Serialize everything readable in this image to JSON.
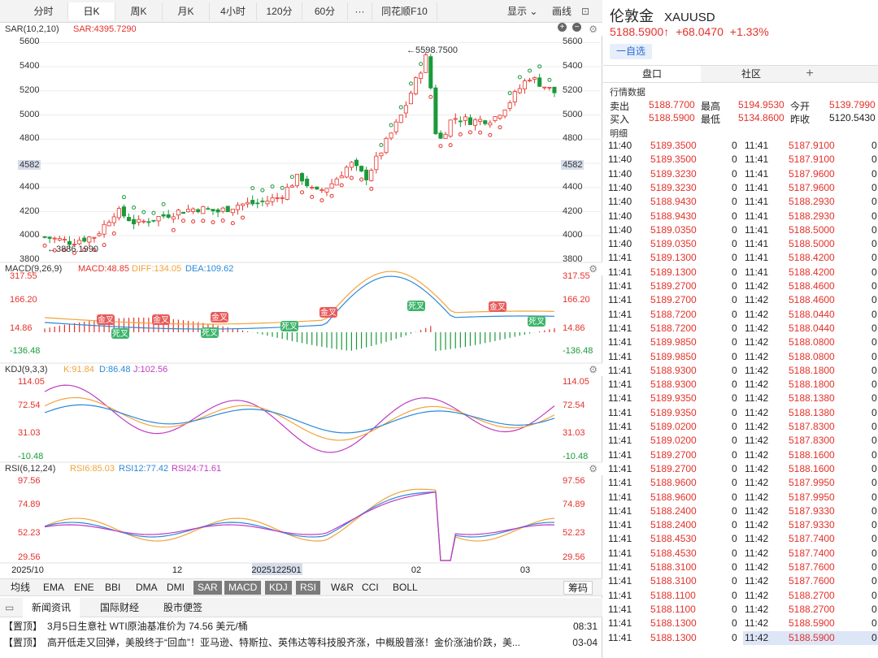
{
  "toolbar": {
    "timeframes": [
      "分时",
      "日K",
      "周K",
      "月K",
      "4小时",
      "120分",
      "60分"
    ],
    "more": "···",
    "f10": "同花顺F10",
    "display": "显示",
    "draw": "画线"
  },
  "main_panel": {
    "indicator": "SAR(10,2,10)",
    "sar_value": "SAR:4395.7290",
    "high_annot": "5598.7500",
    "low_annot": "3886.1990",
    "current_y_label": "4582",
    "y_ticks": [
      "5600",
      "5400",
      "5200",
      "5000",
      "4800",
      "4600",
      "4400",
      "4200",
      "4000",
      "3800"
    ]
  },
  "macd_panel": {
    "title": "MACD(9,26,9)",
    "macd": "MACD:48.85",
    "diff": "DIFF:134.05",
    "dea": "DEA:109.62",
    "y_ticks": [
      "317.55",
      "166.20",
      "14.86",
      "-136.48"
    ],
    "golden_label": "金叉",
    "death_label": "死叉"
  },
  "kdj_panel": {
    "title": "KDJ(9,3,3)",
    "k": "K:91.84",
    "d": "D:86.48",
    "j": "J:102.56",
    "y_ticks": [
      "114.05",
      "72.54",
      "31.03",
      "-10.48"
    ]
  },
  "rsi_panel": {
    "title": "RSI(6,12,24)",
    "rsi6": "RSI6:85.03",
    "rsi12": "RSI12:77.42",
    "rsi24": "RSI24:71.61",
    "y_ticks": [
      "97.56",
      "74.89",
      "52.23",
      "29.56"
    ]
  },
  "x_axis": {
    "labels": [
      "2025/10",
      "12",
      "2025122501",
      "02",
      "03"
    ]
  },
  "indicator_tabs": [
    "均线",
    "EMA",
    "ENE",
    "BBI",
    "DMA",
    "DMI",
    "SAR",
    "MACD",
    "KDJ",
    "RSI",
    "W&R",
    "CCI",
    "BOLL"
  ],
  "active_indicators": [
    "SAR",
    "MACD",
    "KDJ",
    "RSI"
  ],
  "chip_label": "筹码",
  "news": {
    "tabs": [
      "新闻资讯",
      "国际财经",
      "股市便签"
    ],
    "items": [
      {
        "tag": "【置顶】",
        "text": "3月5日生意社 WTI原油基准价为 74.56 美元/桶",
        "time": "08:31"
      },
      {
        "tag": "【置顶】",
        "text": "高开低走又回弹，美股终于“回血”！亚马逊、特斯拉、英伟达等科技股齐涨，中概股普涨！金价涨油价跌，美...",
        "time": "03-04"
      }
    ]
  },
  "quote": {
    "name": "伦敦金",
    "code": "XAUUSD",
    "price": "5188.5900",
    "arrow": "↑",
    "change": "+68.0470",
    "change_pct": "+1.33%",
    "add_watch": "一自选",
    "tabs": [
      "盘口",
      "社区",
      "+"
    ],
    "market_label": "行情数据",
    "labels": {
      "sell": "卖出",
      "buy": "买入",
      "high": "最高",
      "low": "最低",
      "open": "今开",
      "prev": "昨收"
    },
    "values": {
      "sell": "5188.7700",
      "buy": "5188.5900",
      "high": "5194.9530",
      "low": "5134.8600",
      "open": "5139.7990",
      "prev": "5120.5430"
    },
    "detail_label": "明细"
  },
  "ticks": {
    "rows": [
      [
        "11:40",
        "5189.3500",
        "0",
        "11:41",
        "5187.9100",
        "0"
      ],
      [
        "11:40",
        "5189.3500",
        "0",
        "11:41",
        "5187.9100",
        "0"
      ],
      [
        "11:40",
        "5189.3230",
        "0",
        "11:41",
        "5187.9600",
        "0"
      ],
      [
        "11:40",
        "5189.3230",
        "0",
        "11:41",
        "5187.9600",
        "0"
      ],
      [
        "11:40",
        "5188.9430",
        "0",
        "11:41",
        "5188.2930",
        "0"
      ],
      [
        "11:40",
        "5188.9430",
        "0",
        "11:41",
        "5188.2930",
        "0"
      ],
      [
        "11:40",
        "5189.0350",
        "0",
        "11:41",
        "5188.5000",
        "0"
      ],
      [
        "11:40",
        "5189.0350",
        "0",
        "11:41",
        "5188.5000",
        "0"
      ],
      [
        "11:41",
        "5189.1300",
        "0",
        "11:41",
        "5188.4200",
        "0"
      ],
      [
        "11:41",
        "5189.1300",
        "0",
        "11:41",
        "5188.4200",
        "0"
      ],
      [
        "11:41",
        "5189.2700",
        "0",
        "11:42",
        "5188.4600",
        "0"
      ],
      [
        "11:41",
        "5189.2700",
        "0",
        "11:42",
        "5188.4600",
        "0"
      ],
      [
        "11:41",
        "5188.7200",
        "0",
        "11:42",
        "5188.0440",
        "0"
      ],
      [
        "11:41",
        "5188.7200",
        "0",
        "11:42",
        "5188.0440",
        "0"
      ],
      [
        "11:41",
        "5189.9850",
        "0",
        "11:42",
        "5188.0800",
        "0"
      ],
      [
        "11:41",
        "5189.9850",
        "0",
        "11:42",
        "5188.0800",
        "0"
      ],
      [
        "11:41",
        "5188.9300",
        "0",
        "11:42",
        "5188.1800",
        "0"
      ],
      [
        "11:41",
        "5188.9300",
        "0",
        "11:42",
        "5188.1800",
        "0"
      ],
      [
        "11:41",
        "5189.9350",
        "0",
        "11:42",
        "5188.1380",
        "0"
      ],
      [
        "11:41",
        "5189.9350",
        "0",
        "11:42",
        "5188.1380",
        "0"
      ],
      [
        "11:41",
        "5189.0200",
        "0",
        "11:42",
        "5187.8300",
        "0"
      ],
      [
        "11:41",
        "5189.0200",
        "0",
        "11:42",
        "5187.8300",
        "0"
      ],
      [
        "11:41",
        "5189.2700",
        "0",
        "11:42",
        "5188.1600",
        "0"
      ],
      [
        "11:41",
        "5189.2700",
        "0",
        "11:42",
        "5188.1600",
        "0"
      ],
      [
        "11:41",
        "5188.9600",
        "0",
        "11:42",
        "5187.9950",
        "0"
      ],
      [
        "11:41",
        "5188.9600",
        "0",
        "11:42",
        "5187.9950",
        "0"
      ],
      [
        "11:41",
        "5188.2400",
        "0",
        "11:42",
        "5187.9330",
        "0"
      ],
      [
        "11:41",
        "5188.2400",
        "0",
        "11:42",
        "5187.9330",
        "0"
      ],
      [
        "11:41",
        "5188.4530",
        "0",
        "11:42",
        "5187.7400",
        "0"
      ],
      [
        "11:41",
        "5188.4530",
        "0",
        "11:42",
        "5187.7400",
        "0"
      ],
      [
        "11:41",
        "5188.3100",
        "0",
        "11:42",
        "5187.7600",
        "0"
      ],
      [
        "11:41",
        "5188.3100",
        "0",
        "11:42",
        "5187.7600",
        "0"
      ],
      [
        "11:41",
        "5188.1100",
        "0",
        "11:42",
        "5188.2700",
        "0"
      ],
      [
        "11:41",
        "5188.1100",
        "0",
        "11:42",
        "5188.2700",
        "0"
      ],
      [
        "11:41",
        "5188.1300",
        "0",
        "11:42",
        "5188.5900",
        "0"
      ],
      [
        "11:41",
        "5188.1300",
        "0",
        "11:42",
        "5188.5900",
        "0"
      ]
    ]
  },
  "colors": {
    "up": "#e4322b",
    "down": "#1a9a3a",
    "blue": "#2a6ad9",
    "orange": "#f2a33a",
    "magenta": "#c23bc2",
    "sar": "#e4322b",
    "sar_down": "#1a9a3a"
  },
  "chart_data": {
    "type": "candlestick",
    "y_range": [
      3800,
      5650
    ],
    "overlays": [
      "SAR"
    ],
    "keypoints": [
      {
        "t": 0.0,
        "c": 3990
      },
      {
        "t": 0.05,
        "c": 3950
      },
      {
        "t": 0.1,
        "c": 4000
      },
      {
        "t": 0.14,
        "c": 4210
      },
      {
        "t": 0.18,
        "c": 4100
      },
      {
        "t": 0.22,
        "c": 4150
      },
      {
        "t": 0.26,
        "c": 4200
      },
      {
        "t": 0.3,
        "c": 4230
      },
      {
        "t": 0.34,
        "c": 4200
      },
      {
        "t": 0.38,
        "c": 4260
      },
      {
        "t": 0.42,
        "c": 4270
      },
      {
        "t": 0.46,
        "c": 4320
      },
      {
        "t": 0.5,
        "c": 4500
      },
      {
        "t": 0.53,
        "c": 4350
      },
      {
        "t": 0.56,
        "c": 4420
      },
      {
        "t": 0.6,
        "c": 4600
      },
      {
        "t": 0.63,
        "c": 4480
      },
      {
        "t": 0.66,
        "c": 4700
      },
      {
        "t": 0.7,
        "c": 5000
      },
      {
        "t": 0.73,
        "c": 5300
      },
      {
        "t": 0.75,
        "c": 5500
      },
      {
        "t": 0.77,
        "c": 4750
      },
      {
        "t": 0.8,
        "c": 4980
      },
      {
        "t": 0.84,
        "c": 4950
      },
      {
        "t": 0.88,
        "c": 4970
      },
      {
        "t": 0.91,
        "c": 5100
      },
      {
        "t": 0.95,
        "c": 5320
      },
      {
        "t": 1.0,
        "c": 5188
      }
    ]
  }
}
